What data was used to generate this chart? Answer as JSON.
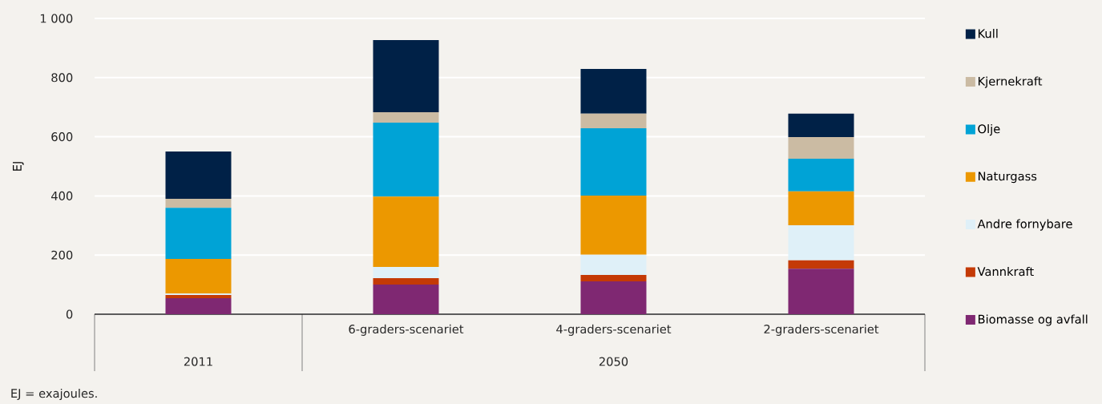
{
  "chart_data": {
    "type": "bar",
    "stacked": true,
    "ylabel": "EJ",
    "categories": [
      null,
      "6-graders-scenariet",
      "4-graders-scenariet",
      "2-graders-scenariet"
    ],
    "series": [
      {
        "name": "Biomasse og avfall",
        "color": "#7f2872",
        "values": [
          54,
          100,
          111,
          154
        ]
      },
      {
        "name": "Vannkraft",
        "color": "#c43a06",
        "values": [
          11,
          22,
          22,
          28
        ]
      },
      {
        "name": "Andre fornybare",
        "color": "#dff0f8",
        "values": [
          5,
          38,
          68,
          119
        ]
      },
      {
        "name": "Naturgass",
        "color": "#ec9800",
        "values": [
          117,
          238,
          200,
          114
        ]
      },
      {
        "name": "Olje",
        "color": "#00a3d6",
        "values": [
          173,
          250,
          228,
          111
        ]
      },
      {
        "name": "Kjernekraft",
        "color": "#cbbba3",
        "values": [
          30,
          35,
          49,
          73
        ]
      },
      {
        "name": "Kull",
        "color": "#002147",
        "values": [
          160,
          244,
          151,
          79
        ]
      }
    ],
    "ylim": [
      0,
      1000
    ],
    "yticks": [
      0,
      200,
      400,
      600,
      800,
      {
        "value": 1000,
        "label": "1 000"
      }
    ],
    "grid": "y",
    "legend": "right",
    "annotations": [
      "2011",
      "2050",
      "EJ = exajoules."
    ]
  }
}
